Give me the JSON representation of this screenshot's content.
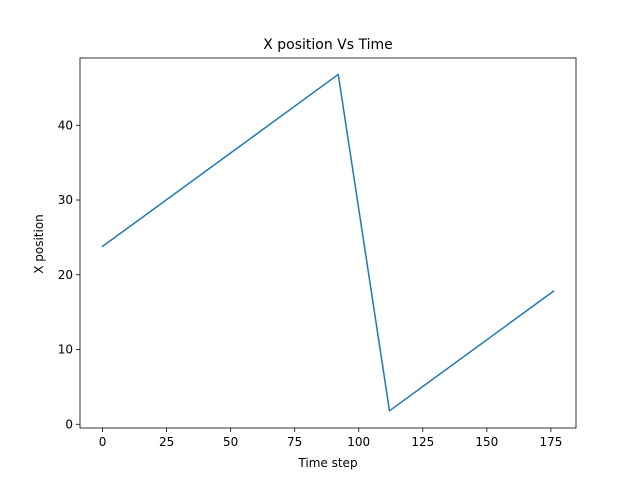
{
  "chart_data": {
    "type": "line",
    "title": "X position Vs Time",
    "xlabel": "Time step",
    "ylabel": "X position",
    "xlim": [
      -8.8,
      184.8
    ],
    "ylim": [
      -0.5,
      49.0
    ],
    "xticks": [
      0,
      25,
      50,
      75,
      100,
      125,
      150,
      175
    ],
    "yticks": [
      0,
      10,
      20,
      30,
      40
    ],
    "grid": false,
    "series": [
      {
        "color": "#1f77b4",
        "x": [
          0,
          92,
          112,
          176
        ],
        "y": [
          23.8,
          46.8,
          1.8,
          17.8
        ]
      }
    ]
  }
}
